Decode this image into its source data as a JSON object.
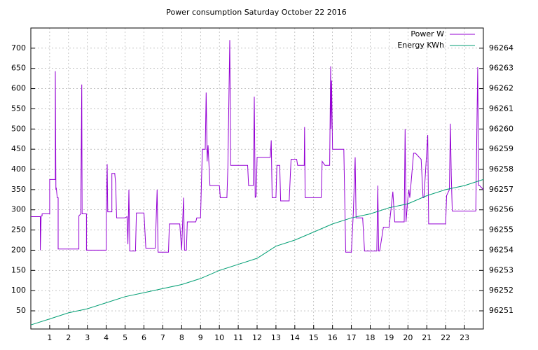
{
  "chart_data": {
    "type": "line",
    "title": "Power consumption Saturday October 22 2016",
    "xlim": [
      0,
      24
    ],
    "xticks": [
      1,
      2,
      3,
      4,
      5,
      6,
      7,
      8,
      9,
      10,
      11,
      12,
      13,
      14,
      15,
      16,
      17,
      18,
      19,
      20,
      21,
      22,
      23
    ],
    "ylim": [
      5,
      750
    ],
    "yticks": [
      50,
      100,
      150,
      200,
      250,
      300,
      350,
      400,
      450,
      500,
      550,
      600,
      650,
      700
    ],
    "y2lim": [
      96250.1,
      96265
    ],
    "y2ticks": [
      96251,
      96252,
      96253,
      96254,
      96255,
      96256,
      96257,
      96258,
      96259,
      96260,
      96261,
      96262,
      96263,
      96264
    ],
    "grid": true,
    "legend": "top-right",
    "series": [
      {
        "name": "Power W",
        "color": "#9400d3",
        "x": [
          0,
          0.5,
          0.5,
          0.55,
          0.6,
          0.6,
          1.0,
          1.0,
          1.3,
          1.3,
          1.33,
          1.35,
          1.4,
          1.45,
          1.45,
          2.55,
          2.55,
          2.65,
          2.7,
          2.72,
          2.75,
          2.95,
          2.95,
          4.0,
          4.0,
          4.05,
          4.08,
          4.3,
          4.3,
          4.45,
          4.5,
          4.55,
          5.0,
          5.1,
          5.15,
          5.2,
          5.25,
          5.55,
          5.6,
          6.0,
          6.1,
          6.6,
          6.7,
          6.75,
          7.3,
          7.35,
          7.9,
          8.0,
          8.1,
          8.15,
          8.25,
          8.3,
          8.75,
          8.8,
          9.0,
          9.05,
          9.1,
          9.25,
          9.3,
          9.35,
          9.4,
          9.5,
          10.0,
          10.05,
          10.4,
          10.45,
          10.55,
          10.6,
          11.5,
          11.55,
          11.8,
          11.85,
          11.9,
          11.95,
          12.0,
          12.7,
          12.75,
          12.8,
          13.0,
          13.05,
          13.2,
          13.25,
          13.7,
          13.8,
          14.1,
          14.15,
          14.5,
          14.52,
          14.55,
          15.4,
          15.45,
          15.6,
          15.85,
          15.9,
          15.92,
          15.95,
          16.0,
          16.6,
          16.7,
          17.0,
          17.1,
          17.2,
          17.25,
          17.3,
          17.6,
          17.7,
          18.35,
          18.4,
          18.45,
          18.5,
          18.7,
          19.0,
          19.1,
          19.2,
          19.3,
          19.4,
          19.8,
          19.85,
          19.9,
          20.0,
          20.05,
          20.1,
          20.3,
          20.4,
          20.7,
          20.8,
          20.85,
          21.05,
          21.1,
          21.2,
          22.0,
          22.05,
          22.2,
          22.25,
          22.3,
          22.35,
          22.5,
          23.6,
          23.7,
          23.75,
          23.8,
          24.0
        ],
        "values": [
          283,
          283,
          200,
          285,
          285,
          290,
          290,
          375,
          375,
          643,
          350,
          355,
          330,
          330,
          203,
          203,
          285,
          290,
          610,
          290,
          290,
          290,
          200,
          200,
          295,
          413,
          295,
          295,
          390,
          390,
          365,
          280,
          280,
          283,
          215,
          350,
          198,
          198,
          292,
          292,
          205,
          205,
          350,
          195,
          195,
          265,
          265,
          200,
          330,
          200,
          200,
          270,
          270,
          280,
          280,
          370,
          450,
          450,
          590,
          420,
          460,
          360,
          360,
          330,
          330,
          405,
          720,
          410,
          410,
          360,
          360,
          580,
          330,
          335,
          430,
          430,
          472,
          330,
          330,
          410,
          410,
          322,
          322,
          425,
          425,
          410,
          410,
          505,
          330,
          330,
          420,
          410,
          410,
          655,
          500,
          620,
          450,
          450,
          195,
          195,
          290,
          430,
          280,
          280,
          280,
          198,
          198,
          360,
          198,
          198,
          257,
          257,
          300,
          345,
          270,
          270,
          270,
          500,
          270,
          330,
          350,
          330,
          440,
          440,
          425,
          330,
          330,
          485,
          265,
          265,
          265,
          335,
          350,
          513,
          385,
          297,
          297,
          297,
          653,
          360,
          360,
          350
        ]
      },
      {
        "name": "Energy KWh",
        "color": "#009e73",
        "axis": "y2",
        "x": [
          0,
          1,
          2,
          3,
          4,
          5,
          6,
          7,
          8,
          9,
          10,
          11,
          12,
          13,
          14,
          15,
          16,
          17,
          18,
          19,
          20,
          21,
          22,
          23,
          24
        ],
        "values": [
          96250.3,
          96250.6,
          96250.9,
          96251.1,
          96251.4,
          96251.7,
          96251.9,
          96252.1,
          96252.3,
          96252.6,
          96253.0,
          96253.3,
          96253.6,
          96254.2,
          96254.5,
          96254.9,
          96255.3,
          96255.6,
          96255.8,
          96256.1,
          96256.3,
          96256.7,
          96257.0,
          96257.2,
          96257.5
        ]
      }
    ]
  }
}
